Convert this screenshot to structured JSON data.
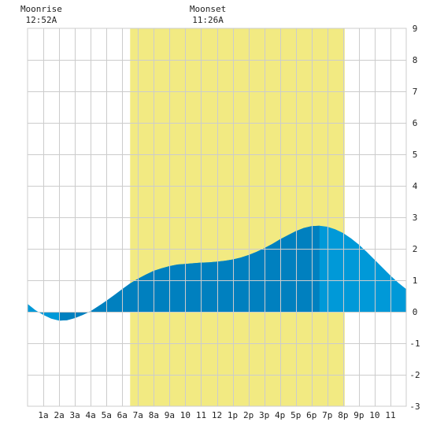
{
  "chart_data": {
    "type": "area",
    "title": "",
    "xlabel": "",
    "ylabel": "",
    "xlim": [
      0,
      24
    ],
    "ylim": [
      -3,
      9
    ],
    "grid": true,
    "x_tick_labels": [
      "1a",
      "2a",
      "3a",
      "4a",
      "5a",
      "6a",
      "7a",
      "8a",
      "9a",
      "10",
      "11",
      "12",
      "1p",
      "2p",
      "3p",
      "4p",
      "5p",
      "6p",
      "7p",
      "8p",
      "9p",
      "10",
      "11"
    ],
    "y_tick_labels": [
      "-3",
      "-2",
      "-1",
      "0",
      "1",
      "2",
      "3",
      "4",
      "5",
      "6",
      "7",
      "8",
      "9"
    ],
    "daylight_band": {
      "start_hour": 6.5,
      "end_hour": 20.1,
      "color": "#f2ea82"
    },
    "moon_events": [
      {
        "label": "Moonrise",
        "time": "12:52A",
        "hour": 0.87
      },
      {
        "label": "Moonset",
        "time": "11:26A",
        "hour": 11.43
      }
    ],
    "tide_dark_band": {
      "start_hour": 2.0,
      "end_hour": 18.5
    },
    "colors": {
      "light": "#0099d8",
      "dark": "#0080bf",
      "grid": "#cccccc"
    },
    "series": [
      {
        "x": [
          0,
          0.5,
          1,
          1.5,
          2,
          2.5,
          3,
          3.5,
          4,
          4.5,
          5,
          5.5,
          6,
          6.5,
          7,
          7.5,
          8,
          8.5,
          9,
          9.5,
          10,
          10.5,
          11,
          11.5,
          12,
          12.5,
          13,
          13.5,
          14,
          14.5,
          15,
          15.5,
          16,
          16.5,
          17,
          17.5,
          18,
          18.5,
          19,
          19.5,
          20,
          20.5,
          21,
          21.5,
          22,
          22.5,
          23,
          23.5,
          24
        ],
        "values": [
          0.25,
          0.05,
          -0.1,
          -0.22,
          -0.28,
          -0.27,
          -0.2,
          -0.1,
          0.02,
          0.18,
          0.35,
          0.53,
          0.72,
          0.9,
          1.05,
          1.18,
          1.3,
          1.38,
          1.45,
          1.5,
          1.52,
          1.54,
          1.56,
          1.57,
          1.59,
          1.62,
          1.66,
          1.72,
          1.8,
          1.9,
          2.02,
          2.15,
          2.3,
          2.43,
          2.56,
          2.66,
          2.72,
          2.73,
          2.7,
          2.62,
          2.5,
          2.33,
          2.13,
          1.9,
          1.65,
          1.4,
          1.15,
          0.92,
          0.72
        ]
      }
    ]
  }
}
